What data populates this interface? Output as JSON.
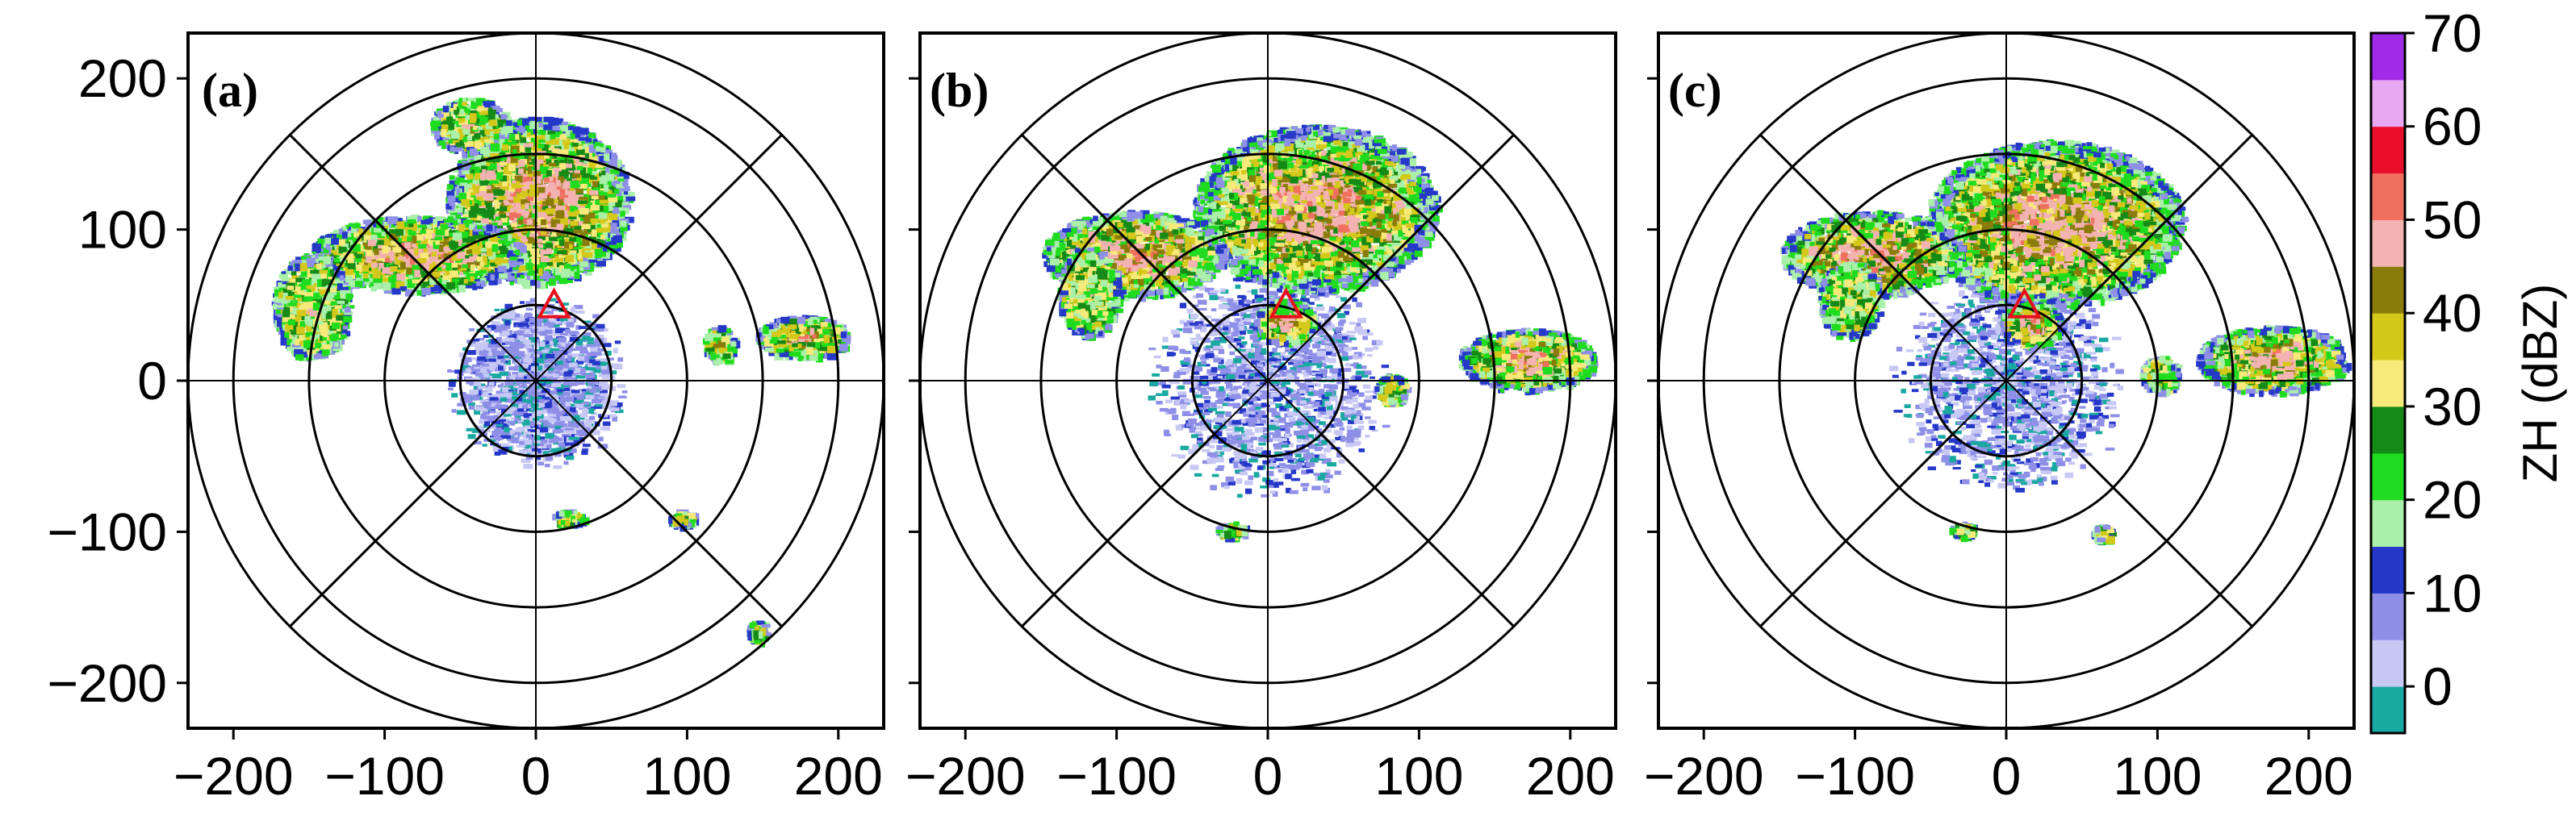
{
  "chart_data": {
    "type": "radar-ppi",
    "variable": "ZH",
    "units": "dBZ",
    "colorbar": {
      "label": "ZH (dBZ)",
      "min": -5,
      "max": 70,
      "step": 5,
      "ticks": [
        "0",
        "10",
        "20",
        "30",
        "40",
        "50",
        "60",
        "70"
      ],
      "colors": [
        "#1aa9a0",
        "#c8c8f5",
        "#8f8fe8",
        "#2538c8",
        "#aaf0aa",
        "#1fdc1f",
        "#168a16",
        "#f7ea7a",
        "#d4c81a",
        "#8a7c0a",
        "#f4b3b3",
        "#f07060",
        "#e80d2a",
        "#e8a8f2",
        "#a12ae8"
      ]
    },
    "axes": {
      "xlim": [
        -230,
        230
      ],
      "ylim": [
        -230,
        230
      ],
      "xticks": [
        "−200",
        "−100",
        "0",
        "100",
        "200"
      ],
      "yticks": [
        "200",
        "100",
        "0",
        "−100",
        "−200"
      ],
      "range_rings_km": [
        50,
        100,
        150,
        200,
        230
      ],
      "spokes_deg": [
        0,
        45,
        90,
        135
      ]
    },
    "site_marker": {
      "shape": "triangle",
      "x": 12,
      "y": 50
    },
    "panels": [
      {
        "label": "(a)"
      },
      {
        "label": "(b)"
      },
      {
        "label": "(c)"
      }
    ]
  }
}
